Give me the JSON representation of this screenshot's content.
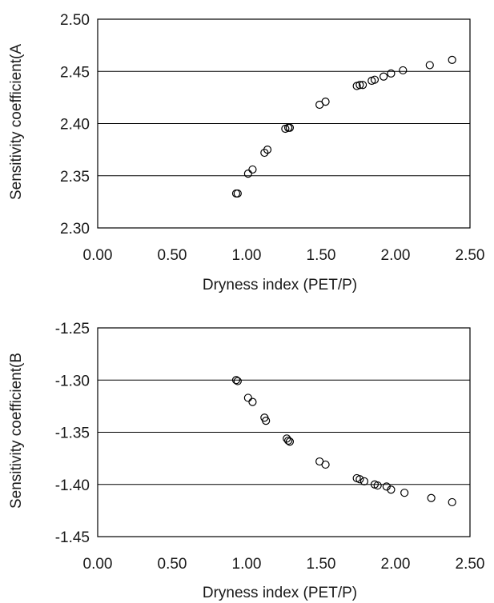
{
  "chart_data": [
    {
      "type": "scatter",
      "title": "",
      "xlabel": "Dryness index (PET/P)",
      "ylabel": "Sensitivity coefficient(A",
      "xlim": [
        0,
        2.5
      ],
      "ylim": [
        2.3,
        2.5
      ],
      "x_ticks": [
        "0.00",
        "0.50",
        "1.00",
        "1.50",
        "2.00",
        "2.50"
      ],
      "y_ticks": [
        "2.50",
        "2.45",
        "2.40",
        "2.35",
        "2.30"
      ],
      "grid": "horizontal",
      "marker": "open-circle",
      "points": [
        {
          "x": 0.93,
          "y": 2.333
        },
        {
          "x": 0.94,
          "y": 2.333
        },
        {
          "x": 1.01,
          "y": 2.352
        },
        {
          "x": 1.04,
          "y": 2.356
        },
        {
          "x": 1.12,
          "y": 2.372
        },
        {
          "x": 1.14,
          "y": 2.375
        },
        {
          "x": 1.26,
          "y": 2.395
        },
        {
          "x": 1.28,
          "y": 2.396
        },
        {
          "x": 1.29,
          "y": 2.396
        },
        {
          "x": 1.49,
          "y": 2.418
        },
        {
          "x": 1.53,
          "y": 2.421
        },
        {
          "x": 1.74,
          "y": 2.436
        },
        {
          "x": 1.76,
          "y": 2.437
        },
        {
          "x": 1.78,
          "y": 2.437
        },
        {
          "x": 1.84,
          "y": 2.441
        },
        {
          "x": 1.86,
          "y": 2.442
        },
        {
          "x": 1.92,
          "y": 2.445
        },
        {
          "x": 1.97,
          "y": 2.448
        },
        {
          "x": 2.05,
          "y": 2.451
        },
        {
          "x": 2.23,
          "y": 2.456
        },
        {
          "x": 2.38,
          "y": 2.461
        }
      ]
    },
    {
      "type": "scatter",
      "title": "",
      "xlabel": "Dryness index (PET/P)",
      "ylabel": "Sensitivity coefficient(B",
      "xlim": [
        0,
        2.5
      ],
      "ylim": [
        -1.45,
        -1.25
      ],
      "x_ticks": [
        "0.00",
        "0.50",
        "1.00",
        "1.50",
        "2.00",
        "2.50"
      ],
      "y_ticks": [
        "-1.25",
        "-1.30",
        "-1.35",
        "-1.40",
        "-1.45"
      ],
      "grid": "horizontal",
      "marker": "open-circle",
      "points": [
        {
          "x": 0.93,
          "y": -1.3
        },
        {
          "x": 0.94,
          "y": -1.301
        },
        {
          "x": 1.01,
          "y": -1.317
        },
        {
          "x": 1.04,
          "y": -1.321
        },
        {
          "x": 1.12,
          "y": -1.336
        },
        {
          "x": 1.13,
          "y": -1.339
        },
        {
          "x": 1.27,
          "y": -1.356
        },
        {
          "x": 1.28,
          "y": -1.358
        },
        {
          "x": 1.29,
          "y": -1.359
        },
        {
          "x": 1.49,
          "y": -1.378
        },
        {
          "x": 1.53,
          "y": -1.381
        },
        {
          "x": 1.74,
          "y": -1.394
        },
        {
          "x": 1.76,
          "y": -1.395
        },
        {
          "x": 1.79,
          "y": -1.397
        },
        {
          "x": 1.86,
          "y": -1.4
        },
        {
          "x": 1.88,
          "y": -1.401
        },
        {
          "x": 1.94,
          "y": -1.402
        },
        {
          "x": 1.97,
          "y": -1.405
        },
        {
          "x": 2.06,
          "y": -1.408
        },
        {
          "x": 2.24,
          "y": -1.413
        },
        {
          "x": 2.38,
          "y": -1.417
        }
      ]
    }
  ]
}
